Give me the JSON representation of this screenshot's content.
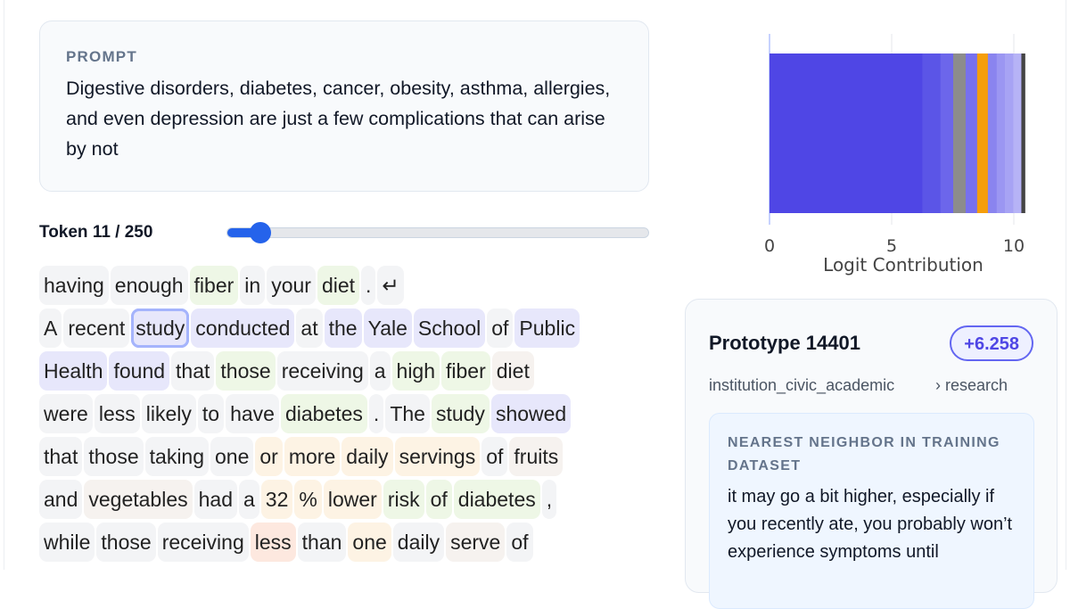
{
  "prompt": {
    "label": "PROMPT",
    "text": "Digestive disorders, diabetes, cancer, obesity, asthma, allergies, and even depression are just a few complications that can arise by not"
  },
  "token_selector": {
    "label": "Token 11 / 250",
    "current": 11,
    "total": 250
  },
  "token_lines": [
    [
      [
        "having",
        "g"
      ],
      [
        "enough",
        "g"
      ],
      [
        "fiber",
        "green"
      ],
      [
        "in",
        "g"
      ],
      [
        "your",
        "g"
      ],
      [
        "diet",
        "green"
      ],
      [
        ".",
        "g"
      ],
      [
        "↵",
        "g"
      ]
    ],
    [
      [
        "A",
        "g"
      ],
      [
        "recent",
        "g"
      ],
      [
        "study",
        "purple",
        "sel"
      ],
      [
        "conducted",
        "purple"
      ],
      [
        "at",
        "g"
      ],
      [
        "the",
        "purple"
      ],
      [
        "Yale",
        "purple"
      ],
      [
        "School",
        "purple"
      ],
      [
        "of",
        "g"
      ],
      [
        "Public",
        "purple"
      ]
    ],
    [
      [
        "Health",
        "purple"
      ],
      [
        "found",
        "purple"
      ],
      [
        "that",
        "g"
      ],
      [
        "those",
        "green"
      ],
      [
        "receiving",
        "g"
      ],
      [
        "a",
        "g"
      ],
      [
        "high",
        "green"
      ],
      [
        "fiber",
        "green"
      ],
      [
        "diet",
        "beige"
      ]
    ],
    [
      [
        "were",
        "g"
      ],
      [
        "less",
        "g"
      ],
      [
        "likely",
        "g"
      ],
      [
        "to",
        "g"
      ],
      [
        "have",
        "g"
      ],
      [
        "diabetes",
        "green"
      ],
      [
        ".",
        "g"
      ],
      [
        "The",
        "g"
      ],
      [
        "study",
        "green"
      ],
      [
        "showed",
        "purple"
      ]
    ],
    [
      [
        "that",
        "g"
      ],
      [
        "those",
        "g"
      ],
      [
        "taking",
        "g"
      ],
      [
        "one",
        "g"
      ],
      [
        "or",
        "orange"
      ],
      [
        "more",
        "orange"
      ],
      [
        "daily",
        "orange"
      ],
      [
        "servings",
        "orange"
      ],
      [
        "of",
        "g"
      ],
      [
        "fruits",
        "beige"
      ]
    ],
    [
      [
        "and",
        "g"
      ],
      [
        "vegetables",
        "beige"
      ],
      [
        "had",
        "g"
      ],
      [
        "a",
        "g"
      ],
      [
        "32",
        "orange"
      ],
      [
        "%",
        "orange"
      ],
      [
        "lower",
        "orange"
      ],
      [
        "risk",
        "green"
      ],
      [
        "of",
        "green"
      ],
      [
        "diabetes",
        "green"
      ],
      [
        ",",
        "g"
      ]
    ],
    [
      [
        "while",
        "g"
      ],
      [
        "those",
        "g"
      ],
      [
        "receiving",
        "g"
      ],
      [
        "less",
        "red"
      ],
      [
        "than",
        "g"
      ],
      [
        "one",
        "orange"
      ],
      [
        "daily",
        "g"
      ],
      [
        "serve",
        "beige"
      ],
      [
        "of",
        "g"
      ]
    ]
  ],
  "chart_data": {
    "type": "bar",
    "orientation": "horizontal-stacked",
    "xlabel": "Logit Contribution",
    "xlim": [
      0,
      10.8
    ],
    "xticks": [
      "0",
      "5",
      "10"
    ],
    "grid": true,
    "segments": [
      {
        "value": 6.258,
        "color": "#4f46e5"
      },
      {
        "value": 0.74,
        "color": "#5b55e7"
      },
      {
        "value": 0.52,
        "color": "#6c66eb"
      },
      {
        "value": 0.51,
        "color": "#8c8c8c"
      },
      {
        "value": 0.47,
        "color": "#7770ee"
      },
      {
        "value": 0.44,
        "color": "#f59e0b"
      },
      {
        "value": 0.36,
        "color": "#8a84ef"
      },
      {
        "value": 0.34,
        "color": "#9b96f2"
      },
      {
        "value": 0.34,
        "color": "#a7a3f4"
      },
      {
        "value": 0.33,
        "color": "#b6b3f6"
      },
      {
        "value": 0.15,
        "color": "#444444"
      }
    ]
  },
  "prototype": {
    "title": "Prototype 14401",
    "score": "+6.258",
    "category": "institution_civic_academic",
    "subcategory": "› research",
    "nearest_label": "NEAREST NEIGHBOR IN TRAINING DATASET",
    "nearest_text": "it may go a bit higher, especially if you recently ate, you probably won’t experience symptoms until"
  }
}
